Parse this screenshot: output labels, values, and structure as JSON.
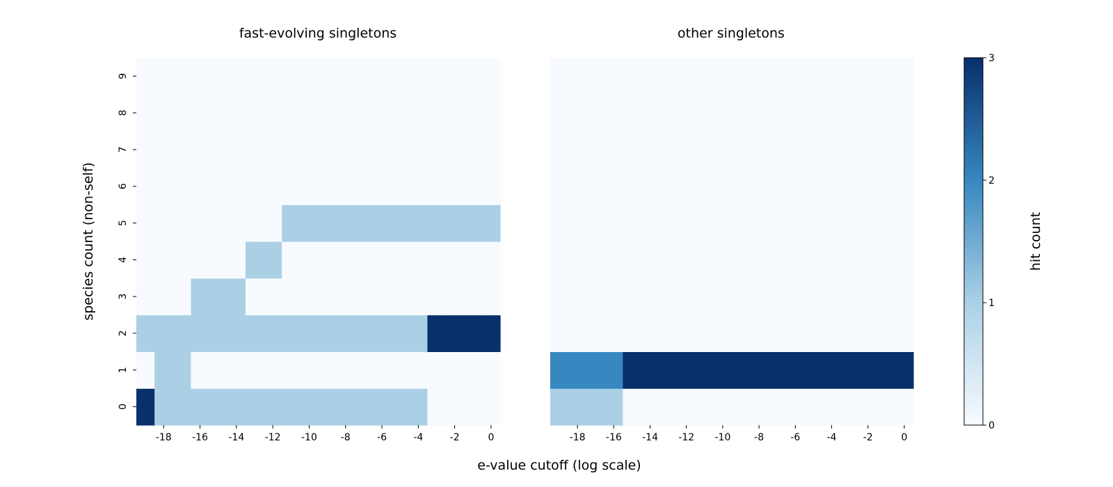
{
  "chart_data": {
    "type": "heatmap",
    "xlabel": "e-value cutoff (log scale)",
    "ylabel": "species count (non-self)",
    "x": [
      -19,
      -18,
      -17,
      -16,
      -15,
      -14,
      -13,
      -12,
      -11,
      -10,
      -9,
      -8,
      -7,
      -6,
      -5,
      -4,
      -3,
      -2,
      -1,
      0
    ],
    "x_tick_labels": [
      "-18",
      "-16",
      "-14",
      "-12",
      "-10",
      "-8",
      "-6",
      "-4",
      "-2",
      "0"
    ],
    "y": [
      0,
      1,
      2,
      3,
      4,
      5,
      6,
      7,
      8,
      9
    ],
    "y_tick_labels": [
      "0",
      "1",
      "2",
      "3",
      "4",
      "5",
      "6",
      "7",
      "8",
      "9"
    ],
    "colormap": "Blues",
    "colorbar": {
      "label": "hit count",
      "min": 0,
      "max": 3,
      "ticks": [
        "0",
        "1",
        "2",
        "3"
      ],
      "colors": [
        "#f7fbff",
        "#abd0e6",
        "#3787c0",
        "#08306b"
      ]
    },
    "panels": [
      {
        "title": "fast-evolving singletons",
        "values": [
          [
            3,
            1,
            1,
            1,
            1,
            1,
            1,
            1,
            1,
            1,
            1,
            1,
            1,
            1,
            1,
            1,
            0,
            0,
            0,
            0
          ],
          [
            0,
            1,
            1,
            0,
            0,
            0,
            0,
            0,
            0,
            0,
            0,
            0,
            0,
            0,
            0,
            0,
            0,
            0,
            0,
            0
          ],
          [
            1,
            1,
            1,
            1,
            1,
            1,
            1,
            1,
            1,
            1,
            1,
            1,
            1,
            1,
            1,
            1,
            3,
            3,
            3,
            3
          ],
          [
            0,
            0,
            0,
            1,
            1,
            1,
            0,
            0,
            0,
            0,
            0,
            0,
            0,
            0,
            0,
            0,
            0,
            0,
            0,
            0
          ],
          [
            0,
            0,
            0,
            0,
            0,
            0,
            1,
            1,
            0,
            0,
            0,
            0,
            0,
            0,
            0,
            0,
            0,
            0,
            0,
            0
          ],
          [
            0,
            0,
            0,
            0,
            0,
            0,
            0,
            0,
            1,
            1,
            1,
            1,
            1,
            1,
            1,
            1,
            1,
            1,
            1,
            1
          ],
          [
            0,
            0,
            0,
            0,
            0,
            0,
            0,
            0,
            0,
            0,
            0,
            0,
            0,
            0,
            0,
            0,
            0,
            0,
            0,
            0
          ],
          [
            0,
            0,
            0,
            0,
            0,
            0,
            0,
            0,
            0,
            0,
            0,
            0,
            0,
            0,
            0,
            0,
            0,
            0,
            0,
            0
          ],
          [
            0,
            0,
            0,
            0,
            0,
            0,
            0,
            0,
            0,
            0,
            0,
            0,
            0,
            0,
            0,
            0,
            0,
            0,
            0,
            0
          ],
          [
            0,
            0,
            0,
            0,
            0,
            0,
            0,
            0,
            0,
            0,
            0,
            0,
            0,
            0,
            0,
            0,
            0,
            0,
            0,
            0
          ]
        ]
      },
      {
        "title": "other singletons",
        "values": [
          [
            1,
            1,
            1,
            1,
            0,
            0,
            0,
            0,
            0,
            0,
            0,
            0,
            0,
            0,
            0,
            0,
            0,
            0,
            0,
            0
          ],
          [
            2,
            2,
            2,
            2,
            3,
            3,
            3,
            3,
            3,
            3,
            3,
            3,
            3,
            3,
            3,
            3,
            3,
            3,
            3,
            3
          ],
          [
            0,
            0,
            0,
            0,
            0,
            0,
            0,
            0,
            0,
            0,
            0,
            0,
            0,
            0,
            0,
            0,
            0,
            0,
            0,
            0
          ],
          [
            0,
            0,
            0,
            0,
            0,
            0,
            0,
            0,
            0,
            0,
            0,
            0,
            0,
            0,
            0,
            0,
            0,
            0,
            0,
            0
          ],
          [
            0,
            0,
            0,
            0,
            0,
            0,
            0,
            0,
            0,
            0,
            0,
            0,
            0,
            0,
            0,
            0,
            0,
            0,
            0,
            0
          ],
          [
            0,
            0,
            0,
            0,
            0,
            0,
            0,
            0,
            0,
            0,
            0,
            0,
            0,
            0,
            0,
            0,
            0,
            0,
            0,
            0
          ],
          [
            0,
            0,
            0,
            0,
            0,
            0,
            0,
            0,
            0,
            0,
            0,
            0,
            0,
            0,
            0,
            0,
            0,
            0,
            0,
            0
          ],
          [
            0,
            0,
            0,
            0,
            0,
            0,
            0,
            0,
            0,
            0,
            0,
            0,
            0,
            0,
            0,
            0,
            0,
            0,
            0,
            0
          ],
          [
            0,
            0,
            0,
            0,
            0,
            0,
            0,
            0,
            0,
            0,
            0,
            0,
            0,
            0,
            0,
            0,
            0,
            0,
            0,
            0
          ],
          [
            0,
            0,
            0,
            0,
            0,
            0,
            0,
            0,
            0,
            0,
            0,
            0,
            0,
            0,
            0,
            0,
            0,
            0,
            0,
            0
          ]
        ]
      }
    ],
    "shared_y_axis": true,
    "grid": false
  }
}
